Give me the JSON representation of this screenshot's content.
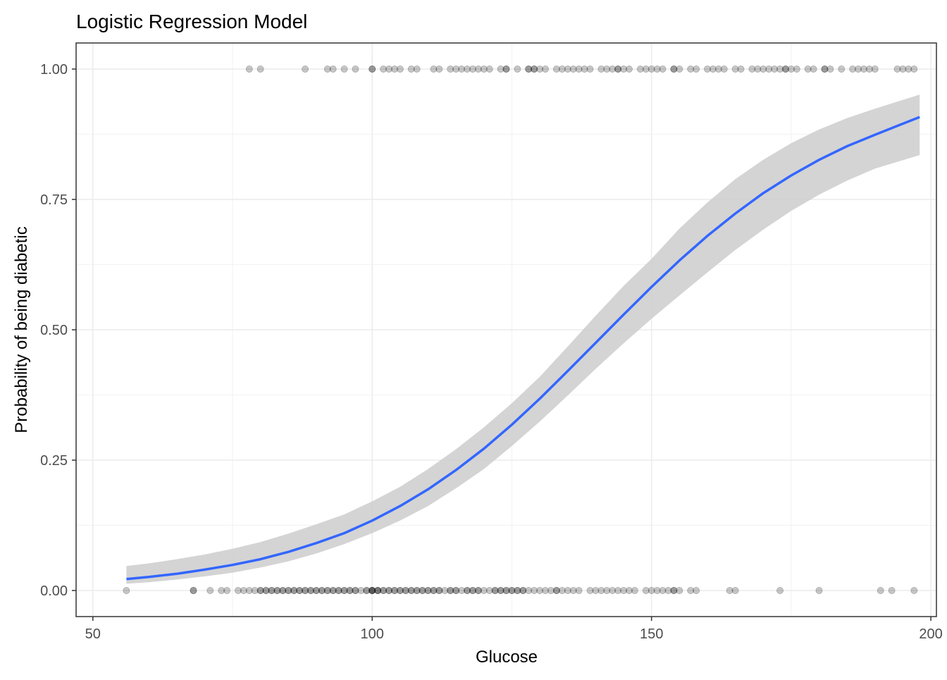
{
  "chart_data": {
    "type": "scatter",
    "title": "Logistic Regression Model",
    "xlabel": "Glucose",
    "ylabel": "Probability of being diabetic",
    "xlim": [
      47,
      201
    ],
    "ylim": [
      -0.05,
      1.05
    ],
    "x_ticks": [
      50,
      100,
      150,
      200
    ],
    "y_ticks": [
      0.0,
      0.25,
      0.5,
      0.75,
      1.0
    ],
    "x_tick_labels": [
      "50",
      "100",
      "150",
      "200"
    ],
    "y_tick_labels": [
      "0.00",
      "0.25",
      "0.50",
      "0.75",
      "1.00"
    ],
    "grid": true,
    "legend": "none",
    "colors": {
      "points": "#000000",
      "curve": "#3366FF",
      "band": "#CCCCCC",
      "grid_major": "#EBEBEB",
      "grid_minor": "#F2F2F2",
      "border": "#333333",
      "tick_text": "#4D4D4D"
    },
    "points_outcome_1": [
      78,
      80,
      88,
      92,
      93,
      95,
      97,
      100,
      100,
      102,
      103,
      104,
      105,
      107,
      108,
      111,
      112,
      114,
      115,
      116,
      117,
      118,
      119,
      120,
      121,
      123,
      124,
      124,
      126,
      128,
      128,
      129,
      129,
      130,
      131,
      133,
      134,
      135,
      136,
      137,
      138,
      139,
      141,
      142,
      143,
      144,
      144,
      145,
      146,
      148,
      149,
      150,
      151,
      152,
      154,
      154,
      155,
      157,
      158,
      160,
      161,
      162,
      163,
      165,
      166,
      168,
      169,
      170,
      171,
      172,
      173,
      174,
      174,
      175,
      176,
      178,
      179,
      181,
      181,
      182,
      184,
      186,
      187,
      188,
      189,
      190,
      194,
      195,
      196,
      197
    ],
    "points_outcome_0": [
      56,
      68,
      68,
      71,
      73,
      74,
      76,
      77,
      78,
      79,
      80,
      80,
      81,
      81,
      82,
      82,
      83,
      83,
      84,
      84,
      85,
      85,
      86,
      86,
      87,
      87,
      88,
      88,
      89,
      89,
      90,
      90,
      91,
      91,
      92,
      92,
      93,
      93,
      94,
      94,
      95,
      95,
      96,
      96,
      97,
      97,
      98,
      99,
      99,
      100,
      100,
      100,
      100,
      101,
      101,
      101,
      102,
      102,
      103,
      103,
      104,
      104,
      105,
      105,
      106,
      106,
      107,
      107,
      108,
      108,
      109,
      109,
      110,
      110,
      111,
      111,
      112,
      112,
      113,
      114,
      114,
      115,
      115,
      116,
      117,
      117,
      118,
      118,
      119,
      119,
      120,
      121,
      122,
      122,
      123,
      123,
      124,
      124,
      125,
      125,
      126,
      126,
      127,
      127,
      128,
      129,
      130,
      131,
      132,
      133,
      133,
      134,
      135,
      136,
      137,
      139,
      140,
      141,
      142,
      143,
      144,
      145,
      146,
      147,
      149,
      150,
      151,
      152,
      153,
      154,
      154,
      155,
      157,
      158,
      164,
      165,
      173,
      180,
      191,
      193,
      197
    ],
    "fit_curve": {
      "x": [
        56,
        60,
        65,
        70,
        75,
        80,
        85,
        90,
        95,
        100,
        105,
        110,
        115,
        120,
        125,
        130,
        135,
        140,
        145,
        150,
        155,
        160,
        165,
        170,
        175,
        180,
        185,
        190,
        198
      ],
      "y": [
        0.022,
        0.026,
        0.032,
        0.04,
        0.049,
        0.06,
        0.074,
        0.091,
        0.11,
        0.134,
        0.162,
        0.194,
        0.231,
        0.272,
        0.318,
        0.368,
        0.421,
        0.475,
        0.529,
        0.582,
        0.633,
        0.68,
        0.723,
        0.762,
        0.796,
        0.826,
        0.852,
        0.874,
        0.908
      ],
      "lower": [
        0.013,
        0.016,
        0.021,
        0.027,
        0.034,
        0.044,
        0.056,
        0.071,
        0.089,
        0.11,
        0.134,
        0.162,
        0.196,
        0.233,
        0.277,
        0.324,
        0.374,
        0.425,
        0.474,
        0.521,
        0.566,
        0.61,
        0.653,
        0.692,
        0.728,
        0.759,
        0.786,
        0.809,
        0.835
      ],
      "upper": [
        0.047,
        0.052,
        0.06,
        0.069,
        0.08,
        0.093,
        0.109,
        0.127,
        0.146,
        0.171,
        0.199,
        0.233,
        0.271,
        0.313,
        0.359,
        0.41,
        0.468,
        0.527,
        0.584,
        0.636,
        0.694,
        0.744,
        0.789,
        0.826,
        0.858,
        0.884,
        0.906,
        0.924,
        0.951
      ]
    }
  }
}
